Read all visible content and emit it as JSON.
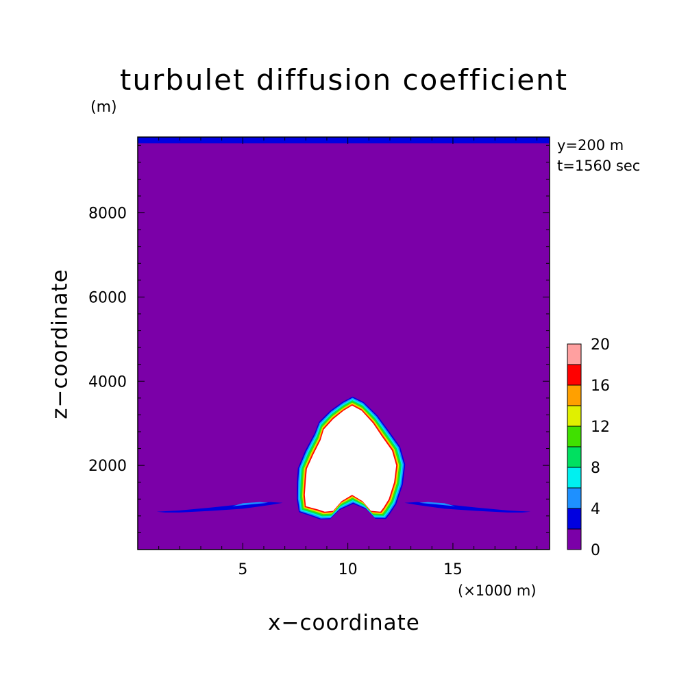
{
  "chart_data": {
    "type": "contour",
    "title": "turbulet diffusion coefficient",
    "xlabel": "x−coordinate",
    "ylabel": "z−coordinate",
    "z_unit": "(m)",
    "x_unit": "(×1000 m)",
    "annotations": [
      "y=200 m",
      "t=1560 sec"
    ],
    "xlim": [
      0,
      19.6
    ],
    "ylim": [
      0,
      9800
    ],
    "x_ticks": [
      5,
      10,
      15
    ],
    "y_ticks": [
      2000,
      4000,
      6000,
      8000
    ],
    "x_tick_labels": [
      "5",
      "10",
      "15"
    ],
    "y_tick_labels": [
      "2000",
      "4000",
      "6000",
      "8000"
    ],
    "colorbar": {
      "levels": [
        0,
        2,
        4,
        6,
        8,
        10,
        12,
        14,
        16,
        18,
        20
      ],
      "tick_labels": [
        "0",
        "4",
        "8",
        "12",
        "16",
        "20"
      ],
      "colors": [
        "#7B00A8",
        "#0000E0",
        "#1E90FF",
        "#00F0F0",
        "#00E060",
        "#40E000",
        "#E0F000",
        "#FFA000",
        "#FF0000",
        "#FFA0A0"
      ],
      "above_max_color": "#FFFFFF"
    },
    "background_color": "#7B00A8",
    "top_layer": {
      "z_range": [
        9650,
        9800
      ],
      "value_class": "2-4",
      "color": "#0000E0"
    },
    "features": [
      {
        "name": "main-plume",
        "description_class": ">20 core with 18/16/14/12/10/8/6/4 rims",
        "core_outline": [
          [
            8.0,
            1030
          ],
          [
            7.95,
            1300
          ],
          [
            8.0,
            1650
          ],
          [
            8.05,
            1920
          ],
          [
            8.35,
            2250
          ],
          [
            8.7,
            2600
          ],
          [
            8.85,
            2850
          ],
          [
            9.3,
            3100
          ],
          [
            9.8,
            3300
          ],
          [
            10.2,
            3420
          ],
          [
            10.65,
            3300
          ],
          [
            11.2,
            3000
          ],
          [
            11.6,
            2700
          ],
          [
            12.1,
            2350
          ],
          [
            12.3,
            2000
          ],
          [
            12.2,
            1600
          ],
          [
            11.95,
            1200
          ],
          [
            11.7,
            1000
          ],
          [
            11.55,
            900
          ],
          [
            11.1,
            920
          ],
          [
            10.7,
            1150
          ],
          [
            10.2,
            1300
          ],
          [
            9.7,
            1150
          ],
          [
            9.3,
            920
          ],
          [
            8.9,
            900
          ],
          [
            8.6,
            950
          ]
        ]
      },
      {
        "name": "left-shear-band",
        "outer_outline": [
          [
            0.9,
            900
          ],
          [
            2,
            930
          ],
          [
            3.5,
            1000
          ],
          [
            5,
            1080
          ],
          [
            6.3,
            1130
          ],
          [
            6.9,
            1110
          ],
          [
            6.3,
            1060
          ],
          [
            5,
            970
          ],
          [
            3.5,
            920
          ],
          [
            2,
            880
          ],
          [
            1.3,
            880
          ]
        ],
        "inner_outline": [
          [
            4.5,
            1030
          ],
          [
            5.5,
            1080
          ],
          [
            6.2,
            1110
          ],
          [
            5.8,
            1130
          ],
          [
            5,
            1100
          ]
        ]
      },
      {
        "name": "right-shear-band",
        "outer_outline": [
          [
            18.7,
            900
          ],
          [
            17.6,
            930
          ],
          [
            16.1,
            1000
          ],
          [
            14.6,
            1080
          ],
          [
            13.3,
            1130
          ],
          [
            12.7,
            1110
          ],
          [
            13.3,
            1060
          ],
          [
            14.6,
            970
          ],
          [
            16.1,
            920
          ],
          [
            17.6,
            880
          ],
          [
            18.3,
            880
          ]
        ],
        "inner_outline": [
          [
            15.1,
            1030
          ],
          [
            14.1,
            1080
          ],
          [
            13.4,
            1110
          ],
          [
            13.8,
            1130
          ],
          [
            14.6,
            1100
          ]
        ]
      }
    ],
    "grid": false
  }
}
